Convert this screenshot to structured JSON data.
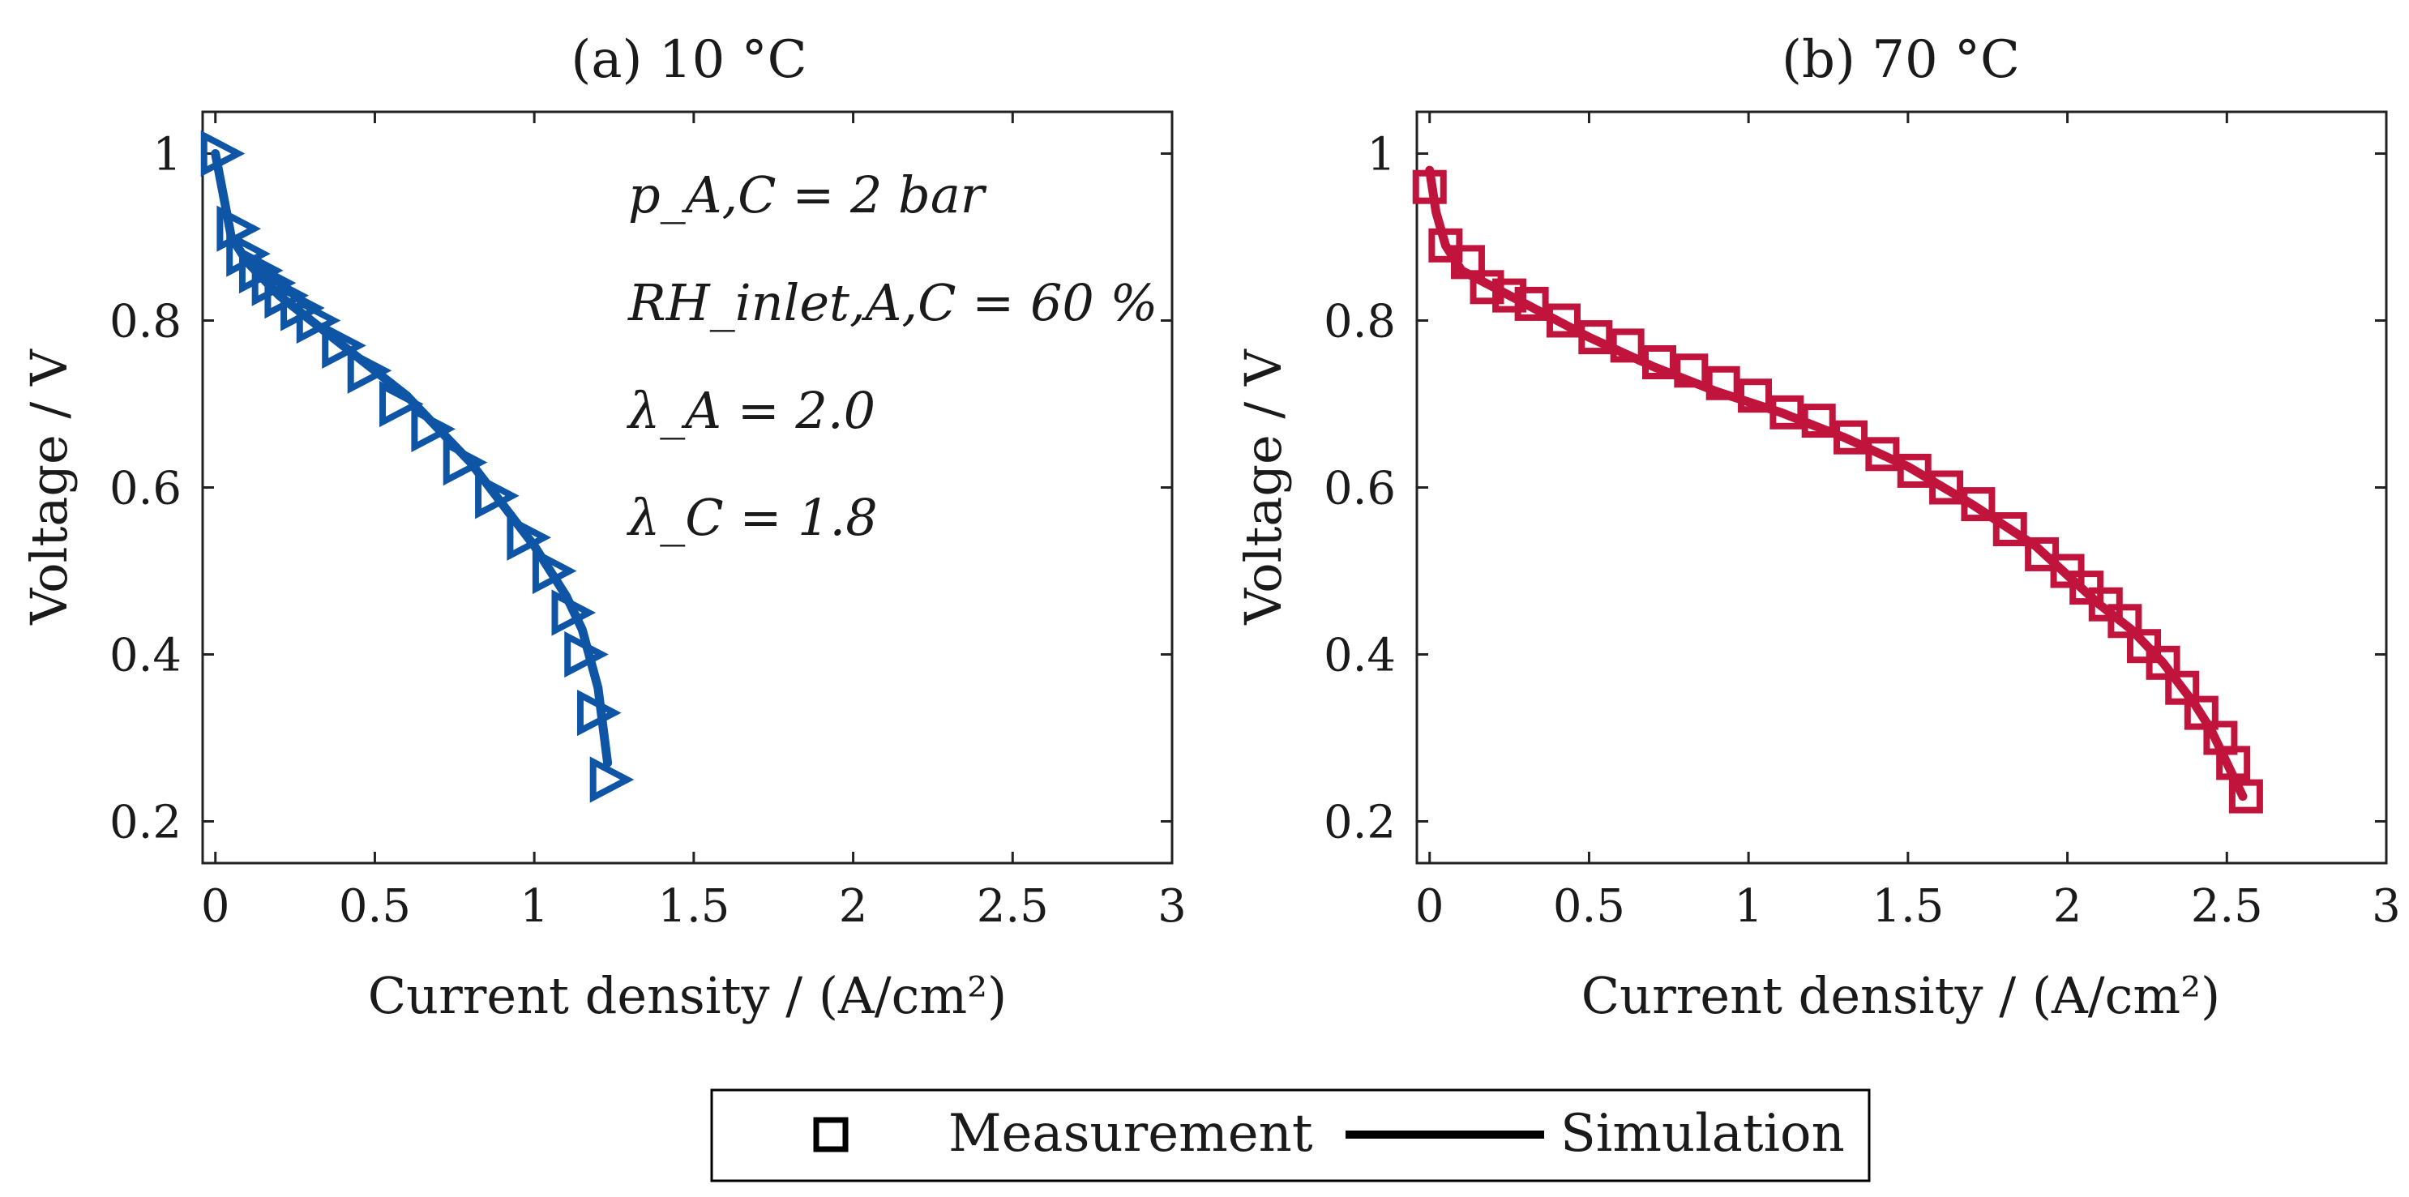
{
  "colors": {
    "series_10C": "#0f55a6",
    "series_70C": "#c0143c",
    "axis": "#222222",
    "legend": "#000000"
  },
  "chart_data": [
    {
      "type": "line",
      "title": "(a) 10 °C",
      "xlabel": "Current density / (A/cm²)",
      "ylabel": "Voltage / V",
      "xlim": [
        -0.04,
        3
      ],
      "ylim": [
        0.15,
        1.05
      ],
      "xticks": [
        0,
        0.5,
        1,
        1.5,
        2,
        2.5,
        3
      ],
      "xtick_labels": [
        "0",
        "0.5",
        "1",
        "1.5",
        "2",
        "2.5",
        "3"
      ],
      "yticks": [
        0.2,
        0.4,
        0.6,
        0.8,
        1.0
      ],
      "ytick_labels": [
        "0.2",
        "0.4",
        "0.6",
        "0.8",
        "1"
      ],
      "grid": false,
      "annotations": [
        "p_A,C = 2 bar",
        "RH_inlet,A,C = 60 %",
        "λ_A = 2.0",
        "λ_C = 1.8"
      ],
      "series": [
        {
          "name": "Measurement",
          "kind": "markers",
          "marker": "triangle-right",
          "x": [
            0.0,
            0.05,
            0.08,
            0.12,
            0.16,
            0.2,
            0.25,
            0.3,
            0.38,
            0.46,
            0.56,
            0.66,
            0.76,
            0.86,
            0.96,
            1.04,
            1.1,
            1.14,
            1.18,
            1.22
          ],
          "y": [
            1.0,
            0.91,
            0.88,
            0.86,
            0.845,
            0.83,
            0.815,
            0.8,
            0.77,
            0.74,
            0.7,
            0.67,
            0.63,
            0.59,
            0.54,
            0.5,
            0.45,
            0.4,
            0.33,
            0.25
          ]
        },
        {
          "name": "Simulation",
          "kind": "line",
          "x": [
            0.0,
            0.02,
            0.05,
            0.1,
            0.2,
            0.3,
            0.4,
            0.5,
            0.6,
            0.7,
            0.8,
            0.9,
            1.0,
            1.1,
            1.15,
            1.2,
            1.23
          ],
          "y": [
            1.0,
            0.96,
            0.9,
            0.87,
            0.83,
            0.8,
            0.77,
            0.74,
            0.71,
            0.67,
            0.63,
            0.58,
            0.53,
            0.47,
            0.43,
            0.36,
            0.27
          ]
        }
      ]
    },
    {
      "type": "line",
      "title": "(b) 70 °C",
      "xlabel": "Current density / (A/cm²)",
      "ylabel": "Voltage / V",
      "xlim": [
        -0.04,
        3
      ],
      "ylim": [
        0.15,
        1.05
      ],
      "xticks": [
        0,
        0.5,
        1,
        1.5,
        2,
        2.5,
        3
      ],
      "xtick_labels": [
        "0",
        "0.5",
        "1",
        "1.5",
        "2",
        "2.5",
        "3"
      ],
      "yticks": [
        0.2,
        0.4,
        0.6,
        0.8,
        1.0
      ],
      "ytick_labels": [
        "0.2",
        "0.4",
        "0.6",
        "0.8",
        "1"
      ],
      "grid": false,
      "series": [
        {
          "name": "Measurement",
          "kind": "markers",
          "marker": "square",
          "x": [
            0.0,
            0.05,
            0.12,
            0.18,
            0.25,
            0.32,
            0.42,
            0.52,
            0.62,
            0.72,
            0.82,
            0.92,
            1.02,
            1.12,
            1.22,
            1.32,
            1.42,
            1.52,
            1.62,
            1.72,
            1.82,
            1.92,
            2.0,
            2.06,
            2.12,
            2.18,
            2.24,
            2.3,
            2.36,
            2.42,
            2.48,
            2.52,
            2.56
          ],
          "y": [
            0.96,
            0.89,
            0.87,
            0.84,
            0.83,
            0.82,
            0.8,
            0.78,
            0.77,
            0.75,
            0.74,
            0.725,
            0.71,
            0.69,
            0.68,
            0.66,
            0.64,
            0.62,
            0.6,
            0.58,
            0.55,
            0.52,
            0.5,
            0.48,
            0.46,
            0.44,
            0.41,
            0.39,
            0.36,
            0.33,
            0.3,
            0.27,
            0.23
          ]
        },
        {
          "name": "Simulation",
          "kind": "line",
          "x": [
            0.0,
            0.02,
            0.05,
            0.1,
            0.2,
            0.3,
            0.5,
            0.7,
            0.9,
            1.1,
            1.3,
            1.5,
            1.7,
            1.9,
            2.1,
            2.2,
            2.3,
            2.4,
            2.45,
            2.5,
            2.55
          ],
          "y": [
            0.98,
            0.93,
            0.89,
            0.86,
            0.84,
            0.82,
            0.78,
            0.745,
            0.715,
            0.69,
            0.66,
            0.625,
            0.58,
            0.53,
            0.46,
            0.43,
            0.39,
            0.34,
            0.31,
            0.27,
            0.23
          ]
        }
      ]
    }
  ],
  "legend": {
    "items": [
      {
        "marker": "square",
        "label": "Measurement"
      },
      {
        "marker": "line",
        "label": "Simulation"
      }
    ],
    "placement": "bottom-center"
  }
}
